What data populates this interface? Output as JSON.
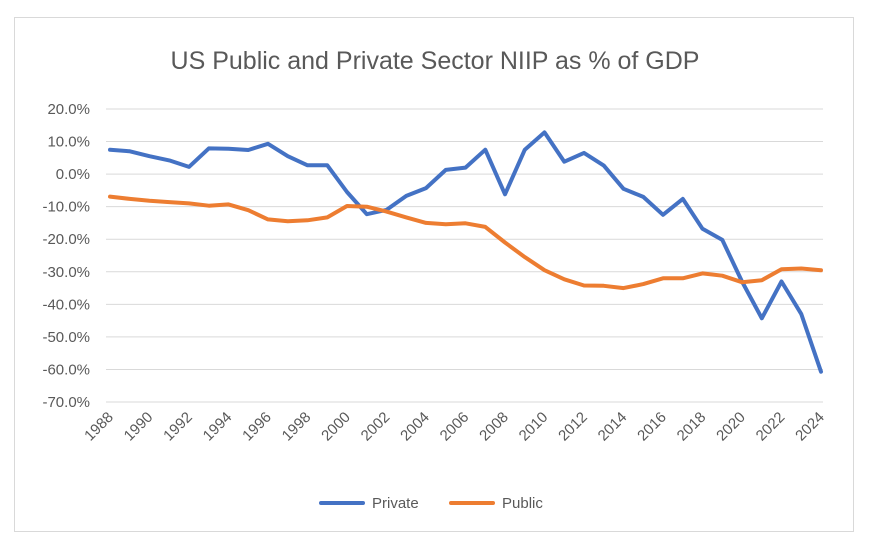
{
  "chart_data": {
    "type": "line",
    "title": "US Public and Private Sector NIIP as % of GDP",
    "xlabel": "",
    "ylabel": "",
    "x": [
      1988,
      1989,
      1990,
      1991,
      1992,
      1993,
      1994,
      1995,
      1996,
      1997,
      1998,
      1999,
      2000,
      2001,
      2002,
      2003,
      2004,
      2005,
      2006,
      2007,
      2008,
      2009,
      2010,
      2011,
      2012,
      2013,
      2014,
      2015,
      2016,
      2017,
      2018,
      2019,
      2020,
      2021,
      2022,
      2023,
      2024
    ],
    "x_tick_labels": [
      "1988",
      "1990",
      "1992",
      "1994",
      "1996",
      "1998",
      "2000",
      "2002",
      "2004",
      "2006",
      "2008",
      "2010",
      "2012",
      "2014",
      "2016",
      "2018",
      "2020",
      "2022",
      "2024"
    ],
    "ylim": [
      -70,
      20
    ],
    "y_ticks": [
      20,
      10,
      0,
      -10,
      -20,
      -30,
      -40,
      -50,
      -60,
      -70
    ],
    "y_tick_labels": [
      "20.0%",
      "10.0%",
      "0.0%",
      "-10.0%",
      "-20.0%",
      "-30.0%",
      "-40.0%",
      "-50.0%",
      "-60.0%",
      "-70.0%"
    ],
    "grid": true,
    "legend_position": "bottom",
    "series": [
      {
        "name": "Private",
        "color": "#4472C4",
        "values": [
          7.5,
          7,
          5.5,
          4.2,
          2.2,
          7.9,
          7.8,
          7.4,
          9.3,
          5.5,
          2.7,
          2.7,
          -5.5,
          -12.3,
          -11,
          -6.7,
          -4.3,
          1.3,
          2,
          7.5,
          -6.2,
          7.5,
          12.8,
          3.8,
          6.5,
          2.6,
          -4.5,
          -7,
          -12.5,
          -7.6,
          -16.8,
          -20.2,
          -33,
          -44.3,
          -33,
          -43,
          -60.7
        ]
      },
      {
        "name": "Public",
        "color": "#ED7D31",
        "values": [
          -6.9,
          -7.6,
          -8.2,
          -8.6,
          -9,
          -9.7,
          -9.3,
          -11.1,
          -13.9,
          -14.5,
          -14.2,
          -13.3,
          -9.8,
          -10,
          -11.5,
          -13.3,
          -15,
          -15.4,
          -15.1,
          -16.2,
          -21,
          -25.5,
          -29.5,
          -32.3,
          -34.2,
          -34.3,
          -35,
          -33.8,
          -32,
          -32,
          -30.5,
          -31.2,
          -33.2,
          -32.6,
          -29.2,
          -29,
          -29.5
        ]
      }
    ]
  }
}
